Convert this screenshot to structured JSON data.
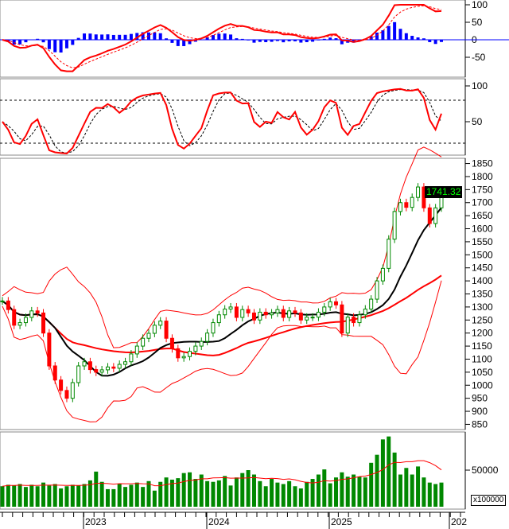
{
  "chart_data": {
    "type": "candlestick",
    "panels": [
      "macd",
      "stochastic",
      "price",
      "volume"
    ],
    "x_ticks": [
      "2023",
      "2024",
      "2025",
      "202"
    ],
    "price": {
      "yticks": [
        850,
        900,
        950,
        1000,
        1050,
        1100,
        1150,
        1200,
        1250,
        1300,
        1350,
        1400,
        1450,
        1500,
        1550,
        1600,
        1650,
        1700,
        1750,
        1800,
        1850
      ],
      "ylim": [
        830,
        1870
      ],
      "last_price": "1741.32",
      "close": [
        1323,
        1290,
        1230,
        1240,
        1260,
        1285,
        1277,
        1200,
        1074,
        1020,
        980,
        950,
        1010,
        1074,
        1090,
        1060,
        1050,
        1059,
        1070,
        1065,
        1080,
        1090,
        1120,
        1150,
        1180,
        1199,
        1230,
        1246,
        1180,
        1140,
        1105,
        1110,
        1130,
        1150,
        1168,
        1200,
        1240,
        1270,
        1292,
        1300,
        1260,
        1290,
        1277,
        1250,
        1280,
        1270,
        1277,
        1290,
        1260,
        1285,
        1277,
        1250,
        1261,
        1261,
        1280,
        1300,
        1320,
        1308,
        1200,
        1261,
        1240,
        1270,
        1292,
        1330,
        1400,
        1448,
        1560,
        1666,
        1700,
        1682,
        1720,
        1760,
        1680,
        1620,
        1680,
        1741
      ]
    },
    "volume": {
      "unit": "x100000",
      "yticks": [
        50000
      ],
      "values": [
        28000,
        30000,
        29000,
        31000,
        27000,
        30000,
        28000,
        33000,
        29000,
        31000,
        25000,
        28000,
        30000,
        29000,
        31000,
        36000,
        48000,
        34000,
        24000,
        24000,
        31000,
        27000,
        30000,
        33000,
        27000,
        35000,
        22000,
        34000,
        40000,
        37000,
        39000,
        46000,
        47000,
        38000,
        44000,
        35000,
        34000,
        36000,
        42000,
        29000,
        40000,
        46000,
        50000,
        44000,
        35000,
        28000,
        38000,
        33000,
        31000,
        35000,
        28000,
        25000,
        34000,
        38000,
        44000,
        51000,
        32000,
        40000,
        47000,
        41000,
        44000,
        41000,
        40000,
        60000,
        71000,
        92000,
        96000,
        74000,
        44000,
        53000,
        44000,
        55000,
        40000,
        33000,
        31000,
        33000
      ],
      "ma_color": "#ff0000",
      "bar_color": "#008800"
    },
    "macd": {
      "yticks": [
        100,
        50,
        0,
        -50
      ]
    },
    "stochastic": {
      "yticks": [
        100,
        50
      ],
      "levels": [
        80,
        20
      ]
    },
    "colors": {
      "up": "#008800",
      "down": "#ff0000",
      "bands": "#ff0000",
      "ma_fast": "#000000",
      "ma_slow": "#ff0000",
      "histogram": "#0000ff"
    }
  }
}
